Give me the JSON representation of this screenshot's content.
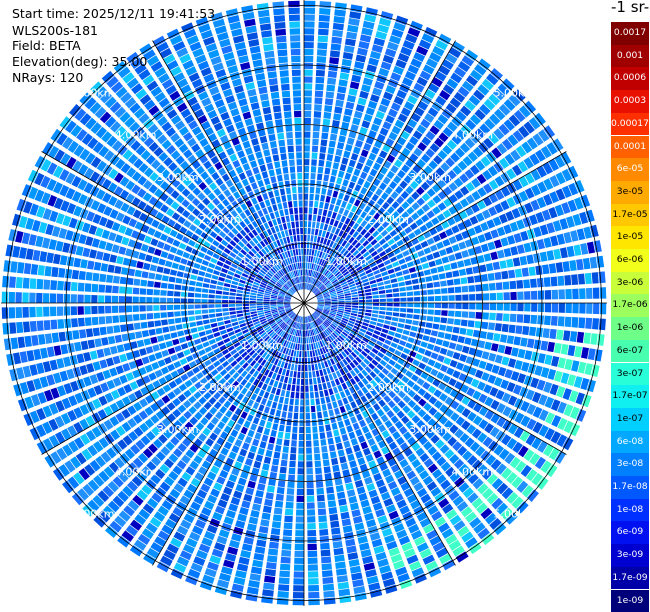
{
  "info": {
    "start_time": "Start time: 2025/12/11 19:41:53",
    "device": "WLS200s-181",
    "field": "Field: BETA",
    "elevation": "Elevation(deg): 35.00",
    "nrays": "NRays: 120"
  },
  "unit_label": "-1 sr-",
  "range_rings": [
    {
      "km": 1,
      "label": "1.00km"
    },
    {
      "km": 2,
      "label": "2.00km"
    },
    {
      "km": 3,
      "label": "3.00km"
    },
    {
      "km": 4,
      "label": "4.00km"
    },
    {
      "km": 5,
      "label": "5.00km"
    }
  ],
  "colorbar": [
    {
      "label": "0.0017",
      "color": "#800000"
    },
    {
      "label": "0.001",
      "color": "#a00000"
    },
    {
      "label": "0.0006",
      "color": "#c00000"
    },
    {
      "label": "0.0003",
      "color": "#e81000"
    },
    {
      "label": "0.00017",
      "color": "#ff3000"
    },
    {
      "label": "0.0001",
      "color": "#ff6000"
    },
    {
      "label": "6e-05",
      "color": "#ff8a00"
    },
    {
      "label": "3e-05",
      "color": "#ffaa00"
    },
    {
      "label": "1.7e-05",
      "color": "#ffc800"
    },
    {
      "label": "1e-05",
      "color": "#ffe600"
    },
    {
      "label": "6e-06",
      "color": "#f2ff1a"
    },
    {
      "label": "3e-06",
      "color": "#c8ff3a"
    },
    {
      "label": "1.7e-06",
      "color": "#9cff5e"
    },
    {
      "label": "1e-06",
      "color": "#6eff88"
    },
    {
      "label": "6e-07",
      "color": "#48ffb0"
    },
    {
      "label": "3e-07",
      "color": "#28ffd8"
    },
    {
      "label": "1.7e-07",
      "color": "#10f0f0"
    },
    {
      "label": "1e-07",
      "color": "#00d0ff"
    },
    {
      "label": "6e-08",
      "color": "#00a8ff"
    },
    {
      "label": "3e-08",
      "color": "#0080ff"
    },
    {
      "label": "1.7e-08",
      "color": "#0058ff"
    },
    {
      "label": "1e-08",
      "color": "#0030ff"
    },
    {
      "label": "6e-09",
      "color": "#0010f0"
    },
    {
      "label": "3e-09",
      "color": "#0000d0"
    },
    {
      "label": "1.7e-09",
      "color": "#0000a8"
    },
    {
      "label": "1e-09",
      "color": "#00007a"
    }
  ]
}
